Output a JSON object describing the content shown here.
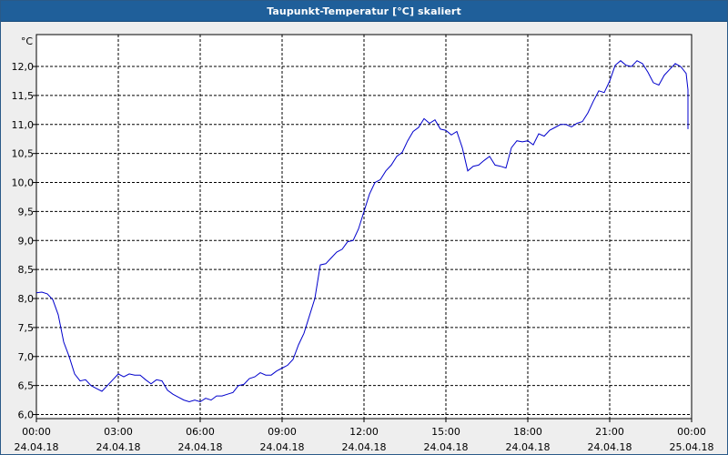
{
  "window": {
    "title": "Taupunkt-Temperatur [°C] skaliert"
  },
  "chart_data": {
    "type": "line",
    "title": "Taupunkt-Temperatur [°C] skaliert",
    "ylabel": "°C",
    "ylim": [
      5.93,
      12.55
    ],
    "y_ticks": [
      "6,0",
      "6,5",
      "7,0",
      "7,5",
      "8,0",
      "8,5",
      "9,0",
      "9,5",
      "10,0",
      "10,5",
      "11,0",
      "11,5",
      "12,0"
    ],
    "y_tick_values": [
      6.0,
      6.5,
      7.0,
      7.5,
      8.0,
      8.5,
      9.0,
      9.5,
      10.0,
      10.5,
      11.0,
      11.5,
      12.0
    ],
    "x_ticks": [
      {
        "time": "00:00",
        "date": "24.04.18"
      },
      {
        "time": "03:00",
        "date": "24.04.18"
      },
      {
        "time": "06:00",
        "date": "24.04.18"
      },
      {
        "time": "09:00",
        "date": "24.04.18"
      },
      {
        "time": "12:00",
        "date": "24.04.18"
      },
      {
        "time": "15:00",
        "date": "24.04.18"
      },
      {
        "time": "18:00",
        "date": "24.04.18"
      },
      {
        "time": "21:00",
        "date": "24.04.18"
      },
      {
        "time": "00:00",
        "date": "25.04.18"
      }
    ],
    "x_range_hours": [
      0,
      24
    ],
    "grid": true,
    "series": [
      {
        "color": "#0000cc",
        "points": [
          [
            0.0,
            8.1
          ],
          [
            0.2,
            8.11
          ],
          [
            0.4,
            8.08
          ],
          [
            0.6,
            7.98
          ],
          [
            0.8,
            7.72
          ],
          [
            1.0,
            7.25
          ],
          [
            1.2,
            7.0
          ],
          [
            1.4,
            6.7
          ],
          [
            1.6,
            6.58
          ],
          [
            1.8,
            6.6
          ],
          [
            2.0,
            6.5
          ],
          [
            2.2,
            6.45
          ],
          [
            2.4,
            6.4
          ],
          [
            2.6,
            6.5
          ],
          [
            2.8,
            6.6
          ],
          [
            3.0,
            6.7
          ],
          [
            3.2,
            6.65
          ],
          [
            3.4,
            6.7
          ],
          [
            3.6,
            6.68
          ],
          [
            3.8,
            6.68
          ],
          [
            4.0,
            6.6
          ],
          [
            4.2,
            6.53
          ],
          [
            4.4,
            6.6
          ],
          [
            4.6,
            6.58
          ],
          [
            4.8,
            6.42
          ],
          [
            5.0,
            6.35
          ],
          [
            5.2,
            6.3
          ],
          [
            5.4,
            6.25
          ],
          [
            5.6,
            6.22
          ],
          [
            5.8,
            6.25
          ],
          [
            6.0,
            6.22
          ],
          [
            6.2,
            6.28
          ],
          [
            6.4,
            6.25
          ],
          [
            6.6,
            6.32
          ],
          [
            6.8,
            6.32
          ],
          [
            7.0,
            6.35
          ],
          [
            7.2,
            6.38
          ],
          [
            7.4,
            6.5
          ],
          [
            7.6,
            6.52
          ],
          [
            7.8,
            6.62
          ],
          [
            8.0,
            6.65
          ],
          [
            8.2,
            6.72
          ],
          [
            8.4,
            6.68
          ],
          [
            8.6,
            6.68
          ],
          [
            8.8,
            6.75
          ],
          [
            9.0,
            6.8
          ],
          [
            9.2,
            6.85
          ],
          [
            9.4,
            6.95
          ],
          [
            9.6,
            7.2
          ],
          [
            9.8,
            7.4
          ],
          [
            10.0,
            7.7
          ],
          [
            10.2,
            8.0
          ],
          [
            10.4,
            8.58
          ],
          [
            10.6,
            8.6
          ],
          [
            10.8,
            8.7
          ],
          [
            11.0,
            8.8
          ],
          [
            11.2,
            8.85
          ],
          [
            11.4,
            8.98
          ],
          [
            11.6,
            9.0
          ],
          [
            11.8,
            9.2
          ],
          [
            12.0,
            9.5
          ],
          [
            12.2,
            9.8
          ],
          [
            12.4,
            10.0
          ],
          [
            12.6,
            10.05
          ],
          [
            12.8,
            10.2
          ],
          [
            13.0,
            10.3
          ],
          [
            13.2,
            10.45
          ],
          [
            13.4,
            10.52
          ],
          [
            13.6,
            10.72
          ],
          [
            13.8,
            10.88
          ],
          [
            14.0,
            10.95
          ],
          [
            14.2,
            11.1
          ],
          [
            14.4,
            11.02
          ],
          [
            14.6,
            11.08
          ],
          [
            14.8,
            10.92
          ],
          [
            15.0,
            10.9
          ],
          [
            15.2,
            10.82
          ],
          [
            15.4,
            10.88
          ],
          [
            15.6,
            10.6
          ],
          [
            15.8,
            10.2
          ],
          [
            16.0,
            10.28
          ],
          [
            16.2,
            10.3
          ],
          [
            16.4,
            10.38
          ],
          [
            16.6,
            10.45
          ],
          [
            16.8,
            10.3
          ],
          [
            17.0,
            10.28
          ],
          [
            17.2,
            10.25
          ],
          [
            17.4,
            10.6
          ],
          [
            17.6,
            10.72
          ],
          [
            17.8,
            10.7
          ],
          [
            18.0,
            10.72
          ],
          [
            18.2,
            10.65
          ],
          [
            18.4,
            10.84
          ],
          [
            18.6,
            10.8
          ],
          [
            18.8,
            10.9
          ],
          [
            19.0,
            10.95
          ],
          [
            19.2,
            11.0
          ],
          [
            19.4,
            11.0
          ],
          [
            19.6,
            10.96
          ],
          [
            19.8,
            11.02
          ],
          [
            20.0,
            11.05
          ],
          [
            20.2,
            11.2
          ],
          [
            20.4,
            11.4
          ],
          [
            20.6,
            11.58
          ],
          [
            20.8,
            11.55
          ],
          [
            21.0,
            11.75
          ],
          [
            21.2,
            12.02
          ],
          [
            21.4,
            12.1
          ],
          [
            21.6,
            12.02
          ],
          [
            21.8,
            12.0
          ],
          [
            22.0,
            12.1
          ],
          [
            22.2,
            12.05
          ],
          [
            22.4,
            11.9
          ],
          [
            22.6,
            11.72
          ],
          [
            22.8,
            11.68
          ],
          [
            23.0,
            11.85
          ],
          [
            23.2,
            11.95
          ],
          [
            23.4,
            12.05
          ],
          [
            23.6,
            12.0
          ],
          [
            23.8,
            11.88
          ],
          [
            24.0,
            11.6
          ],
          [
            24.2,
            11.35
          ],
          [
            24.4,
            11.2
          ],
          [
            24.6,
            10.92
          ]
        ]
      }
    ]
  }
}
